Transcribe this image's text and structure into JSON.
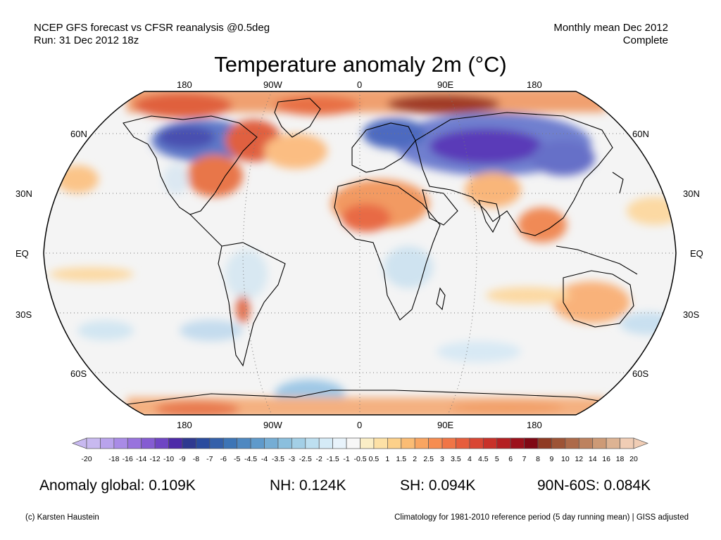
{
  "header": {
    "source": "NCEP GFS forecast vs CFSR reanalysis @0.5deg",
    "run": "Run: 31 Dec 2012 18z",
    "period": "Monthly mean Dec 2012",
    "status": "Complete"
  },
  "title": "Temperature anomaly 2m (°C)",
  "map": {
    "projection": "Robinson",
    "lon_labels": [
      "180",
      "90W",
      "0",
      "90E",
      "180"
    ],
    "lat_labels": [
      "60N",
      "30N",
      "EQ",
      "30S",
      "60S"
    ],
    "gridlines": true
  },
  "colorbar": {
    "ticks": [
      "-20",
      "-18",
      "-16",
      "-14",
      "-12",
      "-10",
      "-9",
      "-8",
      "-7",
      "-6",
      "-5",
      "-4.5",
      "-4",
      "-3.5",
      "-3",
      "-2.5",
      "-2",
      "-1.5",
      "-1",
      "-0.5",
      "0.5",
      "1",
      "1.5",
      "2",
      "2.5",
      "3",
      "3.5",
      "4",
      "4.5",
      "5",
      "6",
      "7",
      "8",
      "9",
      "10",
      "12",
      "14",
      "16",
      "18",
      "20"
    ],
    "colors": [
      "#c8b9f0",
      "#b9a3ec",
      "#a98be6",
      "#9873dd",
      "#855cd2",
      "#6f45c4",
      "#4d2aa8",
      "#2f3990",
      "#2a4b9e",
      "#3460aa",
      "#3d75b6",
      "#4e88c1",
      "#5f9acb",
      "#75add4",
      "#8bbfdd",
      "#a3cfe6",
      "#bddff0",
      "#d5ebf7",
      "#e8f3fb",
      "#f7f7f7",
      "#fbeec6",
      "#fde1a6",
      "#fcd08a",
      "#fbbc74",
      "#f9a561",
      "#f68d51",
      "#f07546",
      "#e65d3c",
      "#d94633",
      "#c83129",
      "#b41f22",
      "#9c111b",
      "#800814",
      "#8f3a22",
      "#9d5335",
      "#ad6a49",
      "#bd825f",
      "#cd9a76",
      "#ddb393",
      "#f0cdb5"
    ]
  },
  "stats": {
    "global": "Anomaly global: 0.109K",
    "nh": "NH: 0.124K",
    "sh": "SH: 0.094K",
    "arctic": "90N-60S: 0.084K"
  },
  "footer": {
    "credit": "(c) Karsten Haustein",
    "note": "Climatology for 1981-2010 reference period (5 day running mean) | GISS adjusted"
  }
}
